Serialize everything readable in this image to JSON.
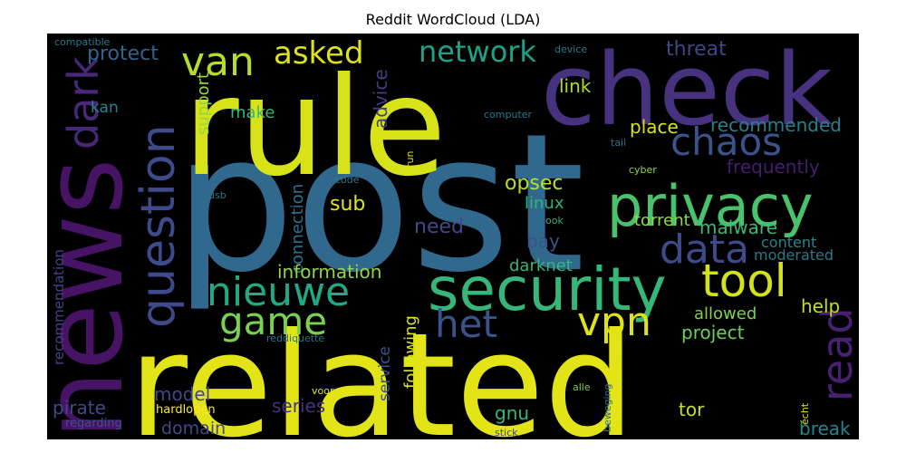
{
  "title": "Reddit WordCloud (LDA)",
  "colors": {
    "background": "#000000"
  },
  "words": [
    {
      "text": "post",
      "color": "#31688e"
    },
    {
      "text": "related",
      "color": "#e3e418"
    },
    {
      "text": "rule",
      "color": "#d8e219"
    },
    {
      "text": "check",
      "color": "#46327e"
    },
    {
      "text": "news",
      "color": "#471365"
    },
    {
      "text": "privacy",
      "color": "#4ac16d"
    },
    {
      "text": "security",
      "color": "#35b779"
    },
    {
      "text": "question",
      "color": "#3e4a89"
    },
    {
      "text": "van",
      "color": "#b5de2b"
    },
    {
      "text": "dark",
      "color": "#482878"
    },
    {
      "text": "asked",
      "color": "#dde318"
    },
    {
      "text": "network",
      "color": "#1fa187"
    },
    {
      "text": "chaos",
      "color": "#3b528b"
    },
    {
      "text": "data",
      "color": "#3e4a89"
    },
    {
      "text": "tool",
      "color": "#d2e21b"
    },
    {
      "text": "read",
      "color": "#482173"
    },
    {
      "text": "nieuwe",
      "color": "#22a884"
    },
    {
      "text": "game",
      "color": "#7ad151"
    },
    {
      "text": "het",
      "color": "#3b528b"
    },
    {
      "text": "vpn",
      "color": "#dde318"
    },
    {
      "text": "opsec",
      "color": "#b8de29"
    },
    {
      "text": "sub",
      "color": "#e5e419"
    },
    {
      "text": "protect",
      "color": "#33638d"
    },
    {
      "text": "threat",
      "color": "#404688"
    },
    {
      "text": "link",
      "color": "#addc30"
    },
    {
      "text": "place",
      "color": "#d8e219"
    },
    {
      "text": "recommended",
      "color": "#26818e"
    },
    {
      "text": "frequently",
      "color": "#481c6e"
    },
    {
      "text": "support",
      "color": "#8fd744"
    },
    {
      "text": "make",
      "color": "#35b779"
    },
    {
      "text": "kan",
      "color": "#25858e"
    },
    {
      "text": "advice",
      "color": "#433e85"
    },
    {
      "text": "linux",
      "color": "#2fb47c"
    },
    {
      "text": "need",
      "color": "#3e4a89"
    },
    {
      "text": "torrent",
      "color": "#8fd744"
    },
    {
      "text": "malware",
      "color": "#38b977"
    },
    {
      "text": "bay",
      "color": "#3b528b"
    },
    {
      "text": "content",
      "color": "#25858e"
    },
    {
      "text": "moderated",
      "color": "#2a788e"
    },
    {
      "text": "connection",
      "color": "#2c728e"
    },
    {
      "text": "information",
      "color": "#8fd744"
    },
    {
      "text": "darknet",
      "color": "#35b779"
    },
    {
      "text": "help",
      "color": "#c0df25"
    },
    {
      "text": "allowed",
      "color": "#7fd34e"
    },
    {
      "text": "project",
      "color": "#6ece58"
    },
    {
      "text": "recommendation",
      "color": "#414487"
    },
    {
      "text": "following",
      "color": "#dde318"
    },
    {
      "text": "service",
      "color": "#3b528b"
    },
    {
      "text": "pirate",
      "color": "#3e4a89"
    },
    {
      "text": "model",
      "color": "#3e4a89"
    },
    {
      "text": "series",
      "color": "#46327e"
    },
    {
      "text": "gnu",
      "color": "#35b779"
    },
    {
      "text": "tor",
      "color": "#c0df25"
    },
    {
      "text": "break",
      "color": "#25858e"
    },
    {
      "text": "domain",
      "color": "#3e4a89"
    },
    {
      "text": "hardlopen",
      "color": "#fde725"
    },
    {
      "text": "regarding",
      "color": "#3b528b"
    },
    {
      "text": "compatible",
      "color": "#2a788e"
    },
    {
      "text": "device",
      "color": "#2a788e"
    },
    {
      "text": "computer",
      "color": "#2a788e"
    },
    {
      "text": "tail",
      "color": "#2c728e"
    },
    {
      "text": "cyber",
      "color": "#8fd744"
    },
    {
      "text": "run",
      "color": "#d8e219"
    },
    {
      "text": "code",
      "color": "#2a788e"
    },
    {
      "text": "usb",
      "color": "#2a788e"
    },
    {
      "text": "ook",
      "color": "#2fb47c"
    },
    {
      "text": "reddiquette",
      "color": "#2c728e"
    },
    {
      "text": "voor",
      "color": "#dde318"
    },
    {
      "text": "alle",
      "color": "#7ad151"
    },
    {
      "text": "beweging",
      "color": "#2c728e"
    },
    {
      "text": "stick",
      "color": "#404688"
    },
    {
      "text": "écht",
      "color": "#d8e219"
    }
  ]
}
